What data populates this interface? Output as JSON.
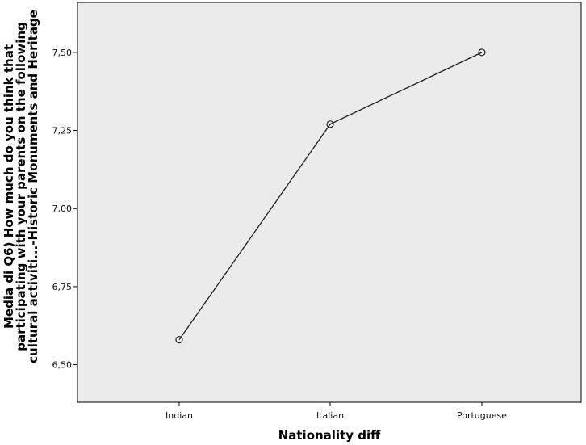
{
  "chart_data": {
    "type": "line",
    "categories": [
      "Indian",
      "Italian",
      "Portuguese"
    ],
    "series": [
      {
        "values": [
          6.58,
          7.27,
          7.5
        ]
      }
    ],
    "ylim": [
      6.38,
      7.66
    ],
    "yticks": [
      6.5,
      6.75,
      7.0,
      7.25,
      7.5
    ],
    "ytick_labels": [
      "6,50",
      "6,75",
      "7,00",
      "7,25",
      "7,50"
    ],
    "xlabel": "Nationality diff",
    "ylabel_lines": [
      "Media di Q6) How much do you think that",
      "participating with your parents on the following",
      "cultural activiti...-Historic Monuments and Heritage"
    ],
    "grid": false,
    "colors": {
      "plot_background": "#ebebeb",
      "line": "#222222",
      "axis": "#000000"
    }
  }
}
